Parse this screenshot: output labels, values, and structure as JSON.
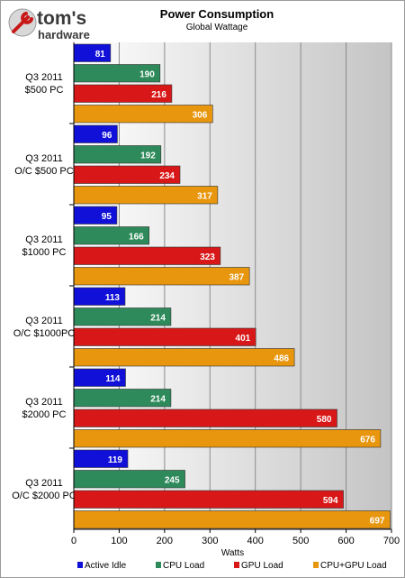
{
  "brand": {
    "name_top": "tom's",
    "name_bottom": "hardware"
  },
  "chart_data": {
    "type": "bar",
    "orientation": "horizontal",
    "title": "Power Consumption",
    "subtitle": "Global Wattage",
    "xlabel": "Watts",
    "ylabel": "",
    "xlim": [
      0,
      700
    ],
    "xticks": [
      0,
      100,
      200,
      300,
      400,
      500,
      600,
      700
    ],
    "grid": true,
    "legend_position": "bottom",
    "categories": [
      [
        "Q3 2011",
        "$500 PC"
      ],
      [
        "Q3 2011",
        "O/C $500 PC"
      ],
      [
        "Q3 2011",
        "$1000 PC"
      ],
      [
        "Q3 2011",
        "O/C $1000PC"
      ],
      [
        "Q3 2011",
        "$2000 PC"
      ],
      [
        "Q3 2011",
        "O/C $2000 PC"
      ]
    ],
    "series": [
      {
        "name": "Active Idle",
        "color": "#1010d8",
        "values": [
          81,
          96,
          95,
          113,
          114,
          119
        ]
      },
      {
        "name": "CPU Load",
        "color": "#2e8a5a",
        "values": [
          190,
          192,
          166,
          214,
          214,
          245
        ]
      },
      {
        "name": "GPU Load",
        "color": "#d81818",
        "values": [
          216,
          234,
          323,
          401,
          580,
          594
        ]
      },
      {
        "name": "CPU+GPU Load",
        "color": "#e8960e",
        "values": [
          306,
          317,
          387,
          486,
          676,
          697
        ]
      }
    ]
  }
}
